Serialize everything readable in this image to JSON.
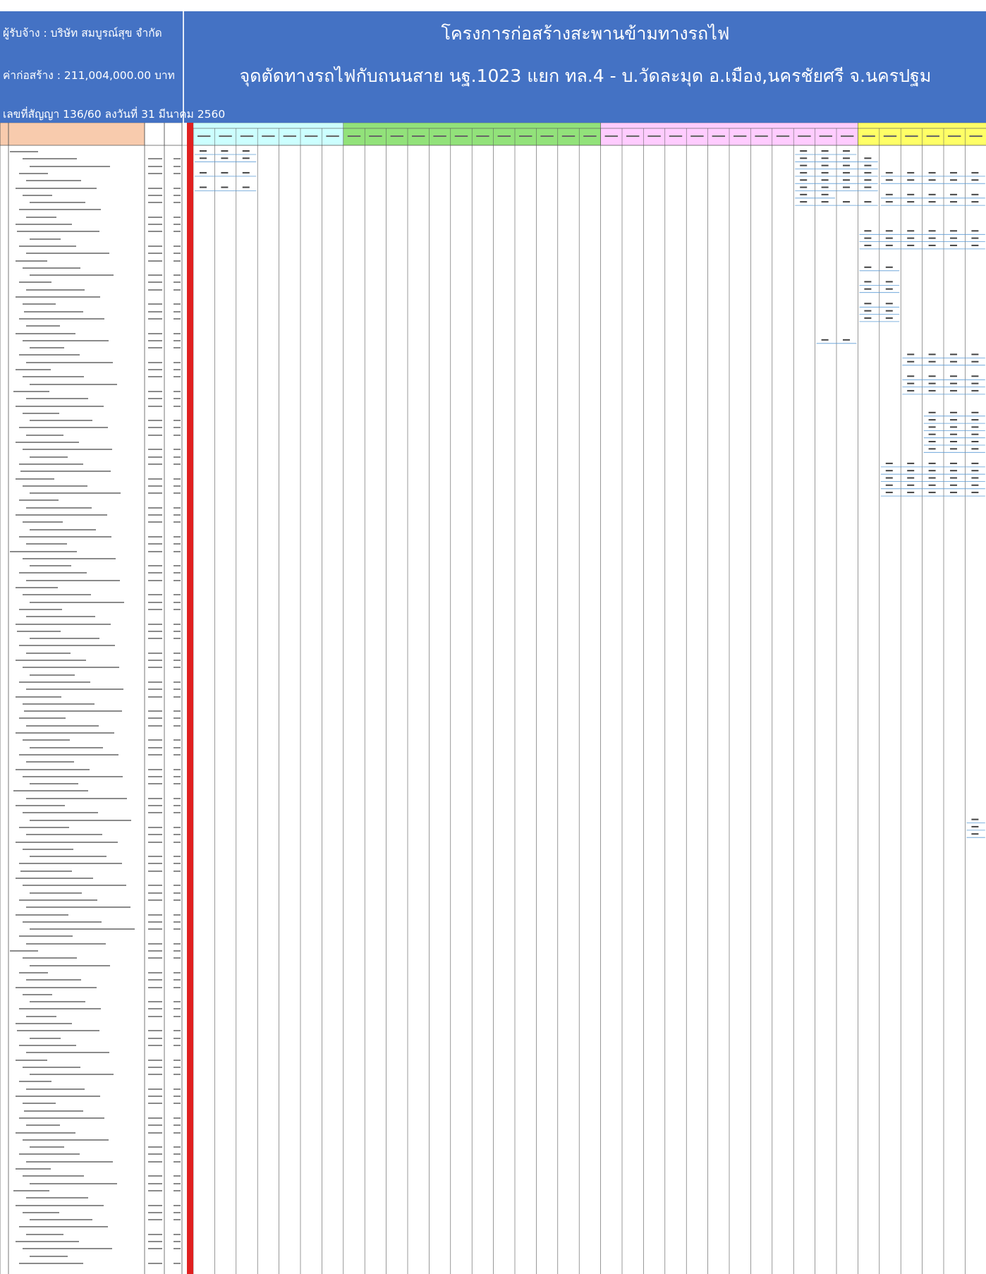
{
  "header": {
    "contractor": "ผู้รับจ้าง : บริษัท  สมบูรณ์สุข  จำกัด",
    "contract_value": "ค่าก่อสร้าง : 211,004,000.00  บาท",
    "contract_no": "เลขที่สัญญา  136/60  ลงวันที่ 31 มีนาคม 2560",
    "title_main": "โครงการก่อสร้างสะพานข้ามทางรถไฟ",
    "title_sub": "จุดตัดทางรถไฟกับถนนสาย นฐ.1023 แยก ทล.4 - บ.วัดละมุด อ.เมือง,นครชัยศรี จ.นครปฐม"
  },
  "colors": {
    "header_bg": "#4472c4",
    "header_text": "#ffffff",
    "name_header_bg": "#f8cbad",
    "progress_bar": "#e02020",
    "group_cyan": "#ccffff",
    "group_green": "#92e27a",
    "group_pink": "#ffccff",
    "group_yellow": "#ffff66",
    "grid_line": "#555555",
    "task_line": "#5b9bd5"
  }
}
